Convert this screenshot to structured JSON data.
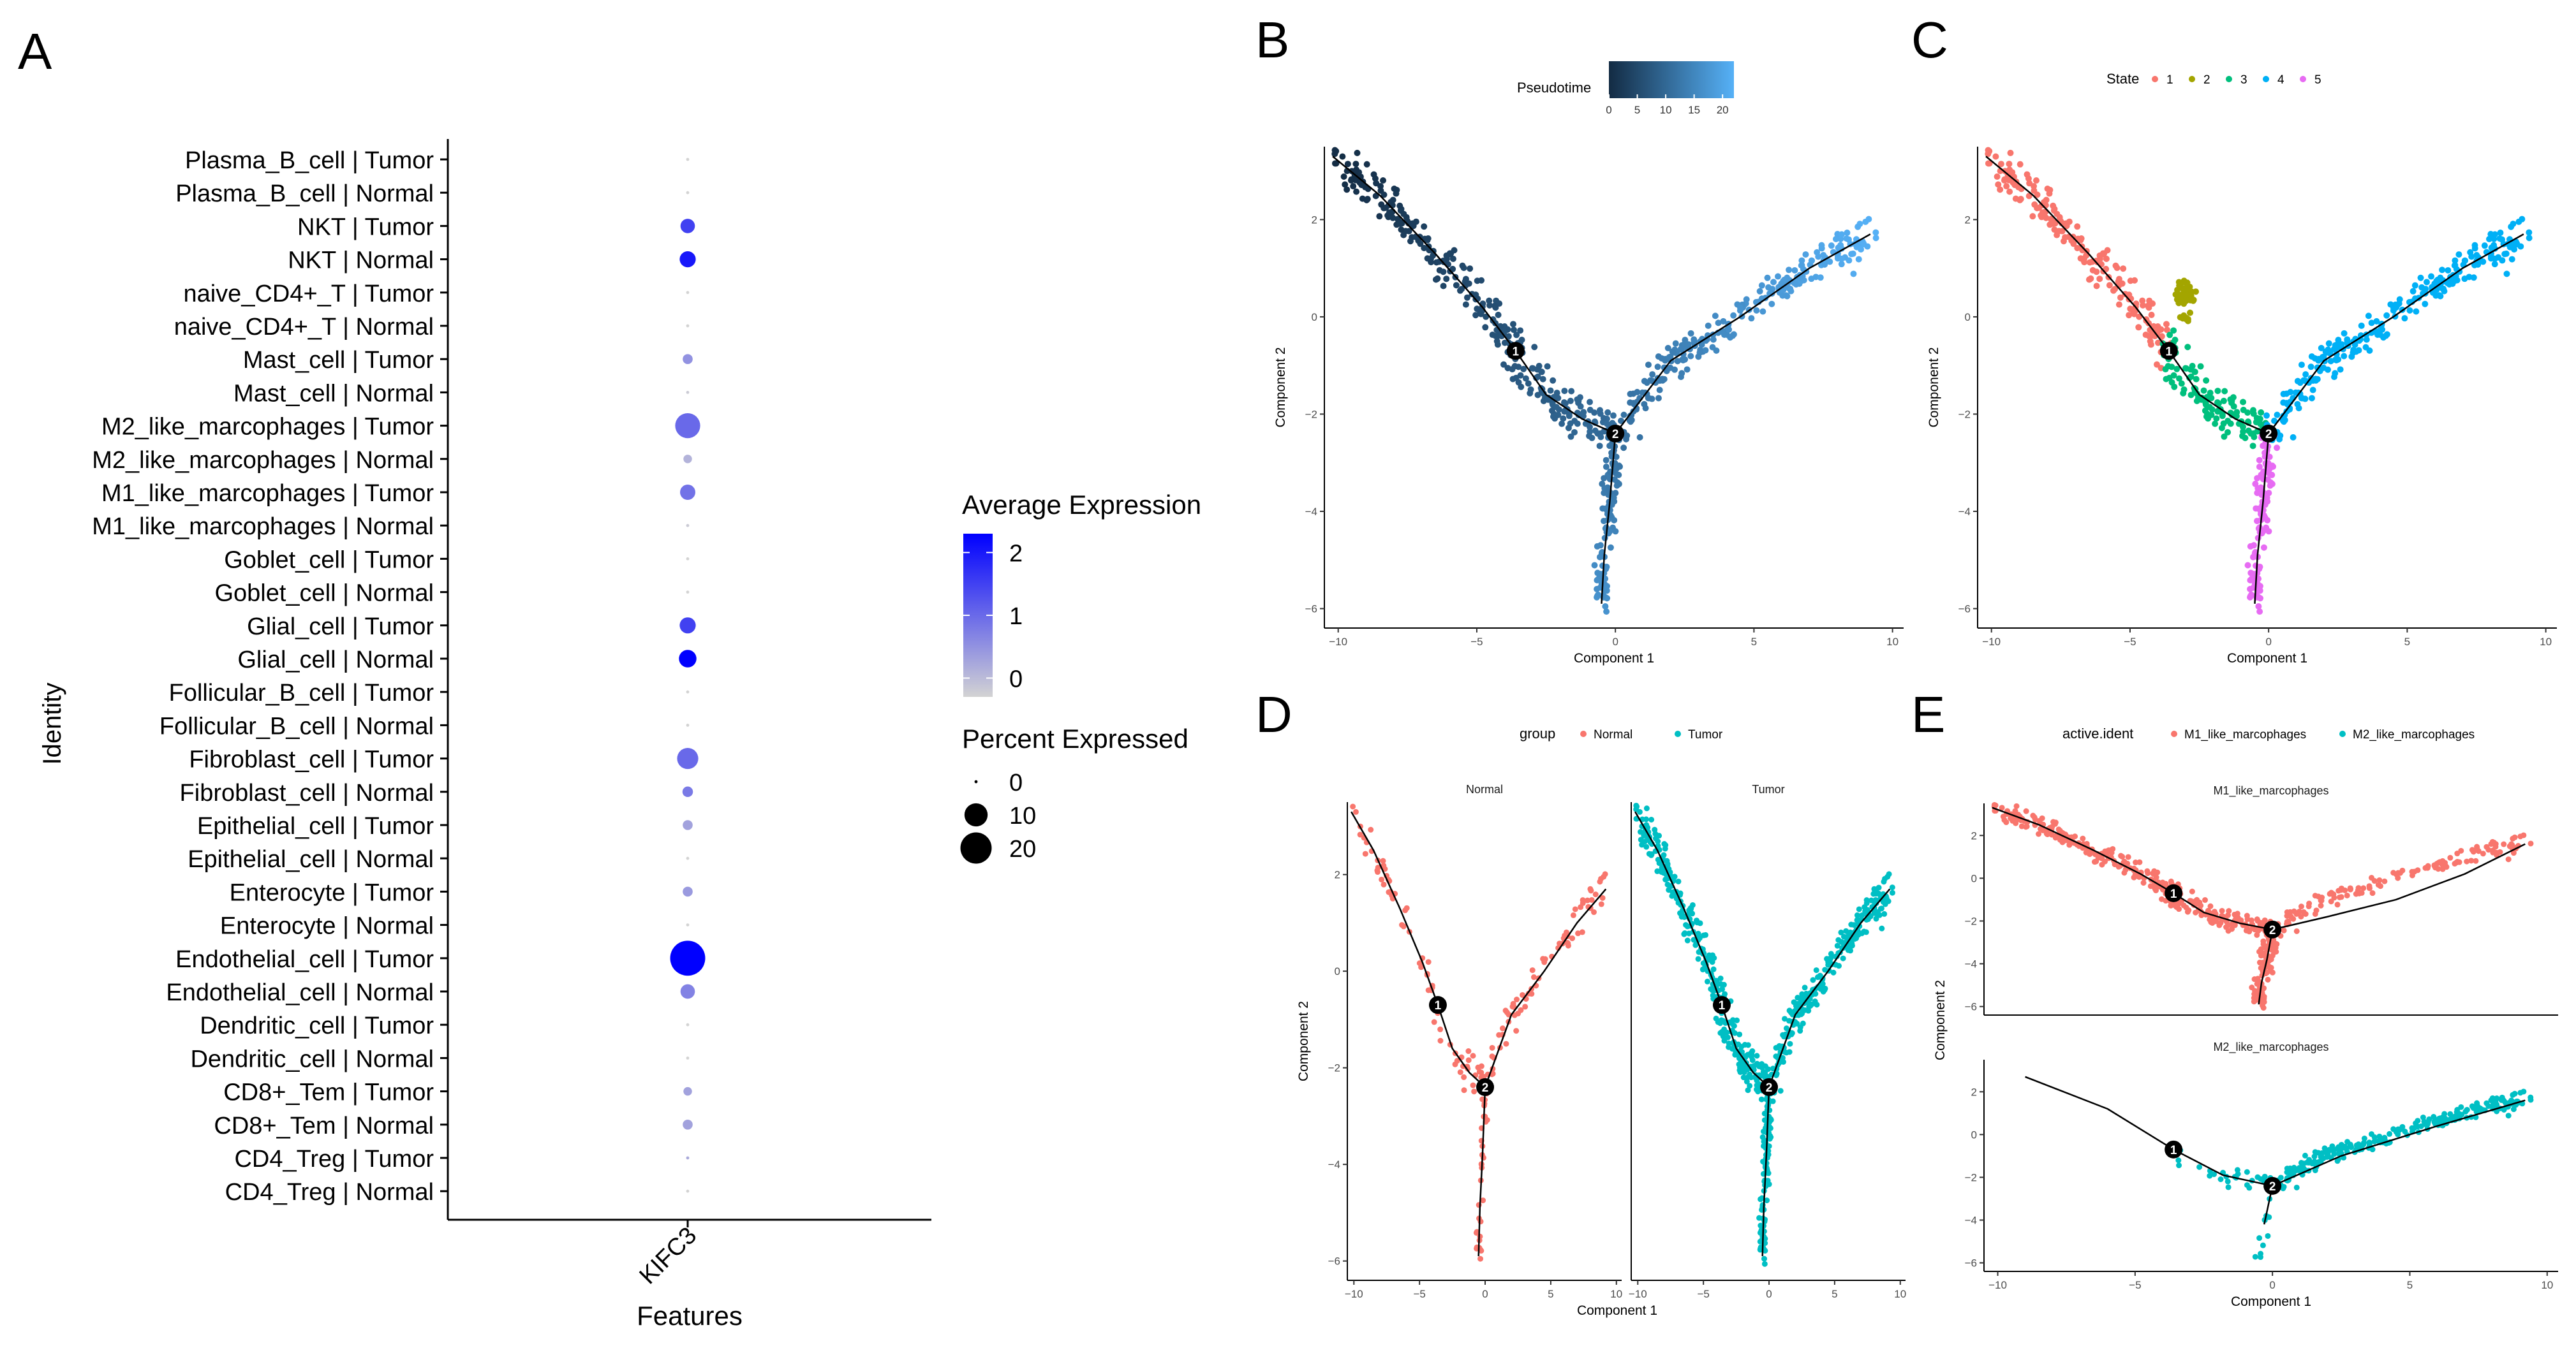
{
  "panel_labels": [
    "A",
    "B",
    "C",
    "D",
    "E"
  ],
  "colors": {
    "low": "#d3d3d3",
    "high": "#0000ff",
    "pt_low": "#132b43",
    "pt_high": "#56b1f7",
    "state": [
      "#f8766d",
      "#a3a500",
      "#00bf7d",
      "#00b0f6",
      "#e76bf3"
    ],
    "group": [
      "#f8766d",
      "#00bfc4"
    ]
  },
  "chart_data": [
    {
      "id": "A",
      "type": "dot",
      "title": "",
      "xlabel": "Features",
      "ylabel": "Identity",
      "feature": "KIFC3",
      "identities": [
        "Plasma_B_cell | Tumor",
        "Plasma_B_cell | Normal",
        "NKT | Tumor",
        "NKT | Normal",
        "naive_CD4+_T | Tumor",
        "naive_CD4+_T | Normal",
        "Mast_cell | Tumor",
        "Mast_cell | Normal",
        "M2_like_marcophages | Tumor",
        "M2_like_marcophages | Normal",
        "M1_like_marcophages | Tumor",
        "M1_like_marcophages | Normal",
        "Goblet_cell | Tumor",
        "Goblet_cell | Normal",
        "Glial_cell | Tumor",
        "Glial_cell | Normal",
        "Follicular_B_cell | Tumor",
        "Follicular_B_cell | Normal",
        "Fibroblast_cell | Tumor",
        "Fibroblast_cell | Normal",
        "Epithelial_cell | Tumor",
        "Epithelial_cell | Normal",
        "Enterocyte | Tumor",
        "Enterocyte | Normal",
        "Endothelial_cell | Tumor",
        "Endothelial_cell | Normal",
        "Dendritic_cell | Tumor",
        "Dendritic_cell | Normal",
        "CD8+_Tem | Tumor",
        "CD8+_Tem | Normal",
        "CD4_Treg | Tumor",
        "CD4_Treg | Normal"
      ],
      "avg_expression": [
        -0.3,
        -0.3,
        1.5,
        2.0,
        -0.3,
        -0.3,
        0.5,
        -0.2,
        1.0,
        0.1,
        0.9,
        -0.2,
        -0.3,
        -0.3,
        1.5,
        2.3,
        -0.3,
        -0.3,
        1.0,
        0.8,
        0.3,
        -0.3,
        0.4,
        -0.3,
        2.3,
        0.7,
        -0.3,
        -0.3,
        0.3,
        0.3,
        0.2,
        -0.3
      ],
      "pct_expressed": [
        0.3,
        0.3,
        3,
        4,
        0.3,
        0.3,
        1,
        0.3,
        12,
        0.6,
        3.5,
        0.3,
        0.3,
        0.3,
        4,
        5,
        0.3,
        0.3,
        8,
        1.2,
        1,
        0.3,
        1,
        0.3,
        26,
        3,
        0.3,
        0.3,
        0.6,
        1,
        0.3,
        0.3
      ],
      "color_legend": {
        "title": "Average Expression",
        "ticks": [
          "2",
          "1",
          "0"
        ],
        "range": [
          -0.3,
          2.3
        ]
      },
      "size_legend": {
        "title": "Percent Expressed",
        "ticks": [
          "0",
          "10",
          "20"
        ],
        "values": [
          0,
          10,
          20
        ]
      }
    },
    {
      "id": "B",
      "type": "scatter",
      "xlabel": "Component 1",
      "ylabel": "Component 2",
      "xlim": [
        -10.5,
        10.4
      ],
      "ylim": [
        -6.4,
        3.5
      ],
      "xticks": [
        -10,
        -5,
        0,
        5,
        10
      ],
      "yticks": [
        -6,
        -4,
        -2,
        0,
        2
      ],
      "xtick_labels": [
        "−10",
        "−5",
        "0",
        "5",
        "10"
      ],
      "ytick_labels": [
        "−6",
        "−4",
        "−2",
        "0",
        "2"
      ],
      "color_by": "pseudotime",
      "legend": {
        "title": "Pseudotime",
        "ticks": [
          "0",
          "5",
          "10",
          "15",
          "20"
        ],
        "range": [
          0,
          22
        ]
      },
      "nodes": [
        {
          "label": "1",
          "x": -3.6,
          "y": -0.7
        },
        {
          "label": "2",
          "x": 0,
          "y": -2.4
        }
      ]
    },
    {
      "id": "C",
      "type": "scatter",
      "xlabel": "Component 1",
      "ylabel": "Component 2",
      "xlim": [
        -10.5,
        10.4
      ],
      "ylim": [
        -6.4,
        3.5
      ],
      "xticks": [
        -10,
        -5,
        0,
        5,
        10
      ],
      "yticks": [
        -6,
        -4,
        -2,
        0,
        2
      ],
      "xtick_labels": [
        "−10",
        "−5",
        "0",
        "5",
        "10"
      ],
      "ytick_labels": [
        "−6",
        "−4",
        "−2",
        "0",
        "2"
      ],
      "color_by": "state",
      "legend": {
        "title": "State",
        "items": [
          "1",
          "2",
          "3",
          "4",
          "5"
        ]
      },
      "nodes": [
        {
          "label": "1",
          "x": -3.6,
          "y": -0.7
        },
        {
          "label": "2",
          "x": 0,
          "y": -2.4
        }
      ]
    },
    {
      "id": "D",
      "type": "scatter",
      "xlabel": "Component 1",
      "ylabel": "Component 2",
      "xlim": [
        -10.5,
        10.4
      ],
      "ylim": [
        -6.4,
        3.5
      ],
      "xticks": [
        -10,
        -5,
        0,
        5,
        10
      ],
      "yticks": [
        -6,
        -4,
        -2,
        0,
        2
      ],
      "xtick_labels": [
        "−10",
        "−5",
        "0",
        "5",
        "10"
      ],
      "ytick_labels": [
        "−6",
        "−4",
        "−2",
        "0",
        "2"
      ],
      "color_by": "group",
      "legend": {
        "title": "group",
        "items": [
          "Normal",
          "Tumor"
        ]
      },
      "facets": [
        "Normal",
        "Tumor"
      ],
      "nodes": [
        {
          "label": "1",
          "x": -3.6,
          "y": -0.7
        },
        {
          "label": "2",
          "x": 0,
          "y": -2.4
        }
      ]
    },
    {
      "id": "E",
      "type": "scatter",
      "xlabel": "Component 1",
      "ylabel": "Component 2",
      "xlim": [
        -10.5,
        10.4
      ],
      "ylim": [
        -6.4,
        3.5
      ],
      "xticks": [
        -10,
        -5,
        0,
        5,
        10
      ],
      "yticks": [
        -6,
        -4,
        -2,
        0,
        2
      ],
      "xtick_labels": [
        "−10",
        "−5",
        "0",
        "5",
        "10"
      ],
      "ytick_labels": [
        "−6",
        "−4",
        "−2",
        "0",
        "2"
      ],
      "color_by": "active.ident",
      "legend": {
        "title": "active.ident",
        "items": [
          "M1_like_marcophages",
          "M2_like_marcophages"
        ]
      },
      "facets": [
        "M1_like_marcophages",
        "M2_like_marcophages"
      ],
      "nodes": [
        {
          "label": "1",
          "x": -3.6,
          "y": -0.7
        },
        {
          "label": "2",
          "x": 0,
          "y": -2.4
        }
      ]
    }
  ]
}
